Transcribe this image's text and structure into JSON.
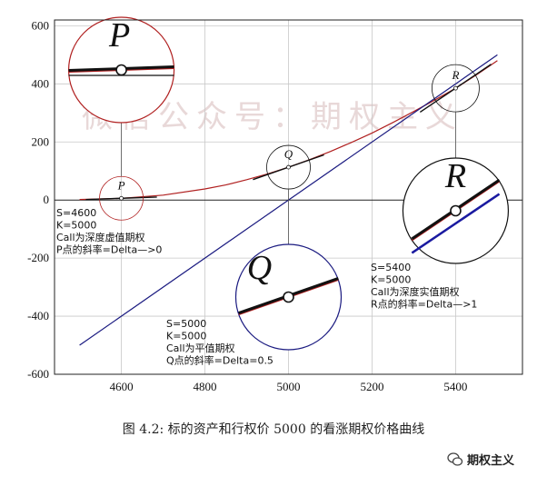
{
  "chart_data": {
    "type": "line",
    "title": "",
    "xlabel": "",
    "ylabel": "",
    "xlim": [
      4440,
      5560
    ],
    "ylim": [
      -600,
      620
    ],
    "x_ticks": [
      4600,
      4800,
      5000,
      5200,
      5400
    ],
    "y_ticks": [
      600,
      400,
      200,
      0,
      -200,
      -400,
      -600
    ],
    "grid": true,
    "strike": 5000,
    "series": [
      {
        "name": "",
        "color": "#b02020",
        "x": [
          4500,
          4600,
          4700,
          4800,
          4850,
          4900,
          4950,
          5000,
          5050,
          5100,
          5150,
          5200,
          5250,
          5300,
          5350,
          5400,
          5450,
          5500
        ],
        "y": [
          2,
          6,
          17,
          38,
          52,
          70,
          90,
          113,
          139,
          167,
          198,
          231,
          267,
          305,
          344,
          385,
          431,
          480
        ]
      },
      {
        "name": "",
        "color": "#1a1a80",
        "x": [
          4500,
          5500
        ],
        "y": [
          -500,
          500
        ]
      }
    ],
    "tangents": [
      {
        "label": "P",
        "x": 4600,
        "y": 6,
        "slope": 0.05
      },
      {
        "label": "Q",
        "x": 5000,
        "y": 113,
        "slope": 0.5
      },
      {
        "label": "R",
        "x": 5400,
        "y": 385,
        "slope": 0.97
      }
    ],
    "annotations": [
      {
        "id": "p",
        "lines": [
          "S=4600",
          "K=5000",
          "Call为深度虚值期权",
          "P点的斜率=Delta—>0"
        ]
      },
      {
        "id": "q",
        "lines": [
          "S=5000",
          "K=5000",
          "Call为平值期权",
          "Q点的斜率=Delta=0.5"
        ]
      },
      {
        "id": "r",
        "lines": [
          "S=5400",
          "K=5000",
          "Call为深度实值期权",
          "R点的斜率=Delta—>1"
        ]
      }
    ]
  },
  "caption": "图 4.2: 标的资产和行权价 5000 的看涨期权价格曲线",
  "watermark": "微信公众号：期权主义",
  "brand": {
    "name": "期权主义",
    "icon": "wechat-icon"
  }
}
